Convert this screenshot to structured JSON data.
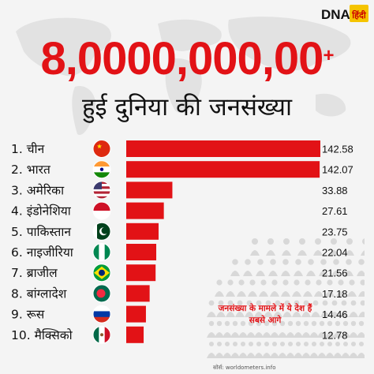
{
  "brand": {
    "logo_text": "DNA",
    "logo_text_hindi": "हिंदी"
  },
  "headline": {
    "number": "8,0000,000,00",
    "plus": "+"
  },
  "subtitle": "हुई दुनिया की जनसंख्या",
  "caption": "जनसंख्या के मामले में ये देश हैं सबसे आगे",
  "source": "सोर्स: worldometers.info",
  "colors": {
    "accent": "#e21216",
    "bar": "#e21216",
    "text": "#111111"
  },
  "chart_data": {
    "type": "bar",
    "orientation": "horizontal",
    "categories": [
      "1. चीन",
      "2. भारत",
      "3. अमेरिका",
      "4. इंडोनेशिया",
      "5. पाकिस्तान",
      "6. नाइजीरिया",
      "7. ब्राजील",
      "8. बांग्लादेश",
      "9. रूस",
      "10. मैक्सिको"
    ],
    "value_labels": [
      "142.58",
      "142.07",
      "33.88",
      "27.61",
      "23.75",
      "22.04",
      "21.56",
      "17.18",
      "14.46",
      "12.78"
    ],
    "values": [
      142.58,
      142.07,
      33.88,
      27.61,
      23.75,
      22.04,
      21.56,
      17.18,
      14.46,
      12.78
    ],
    "flags": [
      "china-flag-icon",
      "india-flag-icon",
      "usa-flag-icon",
      "indonesia-flag-icon",
      "pakistan-flag-icon",
      "nigeria-flag-icon",
      "brazil-flag-icon",
      "bangladesh-flag-icon",
      "russia-flag-icon",
      "mexico-flag-icon"
    ],
    "grid": false,
    "legend": "none"
  }
}
